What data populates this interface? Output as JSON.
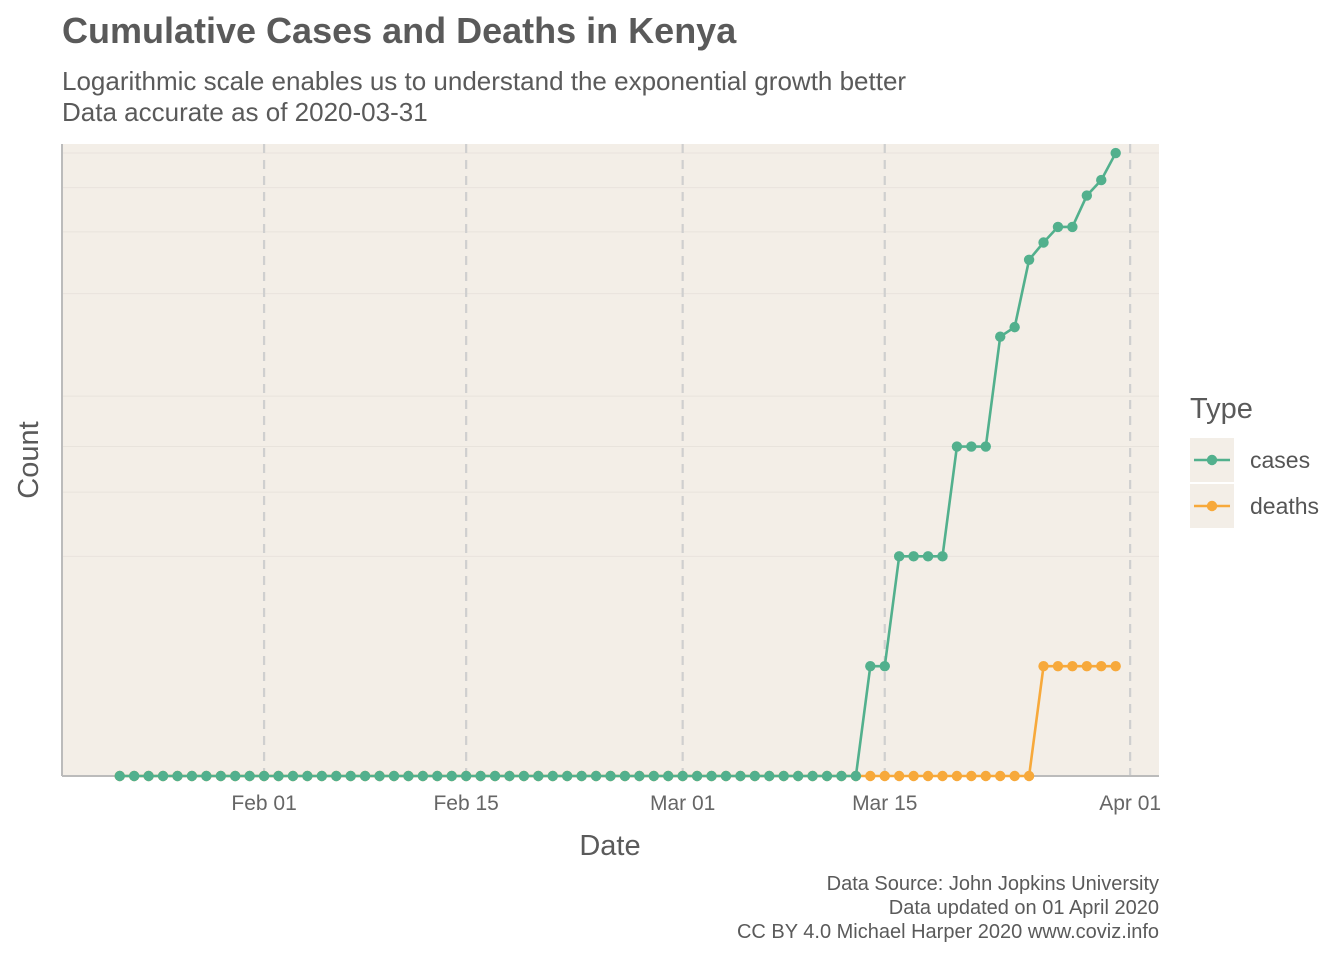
{
  "chart_data": {
    "type": "line",
    "title": "Cumulative Cases and Deaths in Kenya",
    "subtitle_lines": [
      "Logarithmic scale enables us to understand the exponential growth better",
      "Data accurate as of 2020-03-31"
    ],
    "xlabel": "Date",
    "ylabel": "Count",
    "y_scale": "log1p",
    "y_ticks_labeled": false,
    "x_ticks": [
      "2020-02-01",
      "2020-02-15",
      "2020-03-01",
      "2020-03-15",
      "2020-04-01"
    ],
    "x_tick_labels": [
      "Feb 01",
      "Feb 15",
      "Mar 01",
      "Mar 15",
      "Apr 01"
    ],
    "x_range": [
      "2020-01-18",
      "2020-04-03"
    ],
    "y_range": [
      0,
      53
    ],
    "grid": {
      "vertical": "dashed",
      "horizontal": "faint"
    },
    "legend": {
      "title": "Type",
      "placement": "right",
      "items": [
        {
          "label": "cases",
          "color": "#52b08d"
        },
        {
          "label": "deaths",
          "color": "#f7a93b"
        }
      ]
    },
    "series": [
      {
        "name": "cases",
        "color": "#52b08d",
        "start_date": "2020-01-22",
        "values": [
          0,
          0,
          0,
          0,
          0,
          0,
          0,
          0,
          0,
          0,
          0,
          0,
          0,
          0,
          0,
          0,
          0,
          0,
          0,
          0,
          0,
          0,
          0,
          0,
          0,
          0,
          0,
          0,
          0,
          0,
          0,
          0,
          0,
          0,
          0,
          0,
          0,
          0,
          0,
          0,
          0,
          0,
          0,
          0,
          0,
          0,
          0,
          0,
          0,
          0,
          0,
          0,
          1,
          1,
          3,
          3,
          3,
          3,
          7,
          7,
          7,
          15,
          16,
          25,
          28,
          31,
          31,
          38,
          42,
          50
        ]
      },
      {
        "name": "deaths",
        "color": "#f7a93b",
        "start_date": "2020-01-22",
        "values": [
          0,
          0,
          0,
          0,
          0,
          0,
          0,
          0,
          0,
          0,
          0,
          0,
          0,
          0,
          0,
          0,
          0,
          0,
          0,
          0,
          0,
          0,
          0,
          0,
          0,
          0,
          0,
          0,
          0,
          0,
          0,
          0,
          0,
          0,
          0,
          0,
          0,
          0,
          0,
          0,
          0,
          0,
          0,
          0,
          0,
          0,
          0,
          0,
          0,
          0,
          0,
          0,
          0,
          0,
          0,
          0,
          0,
          0,
          0,
          0,
          0,
          0,
          0,
          0,
          1,
          1,
          1,
          1,
          1,
          1
        ]
      }
    ]
  },
  "caption_lines": [
    "Data Source: John Jopkins University",
    "Data updated on 01 April 2020",
    "CC BY 4.0 Michael Harper 2020 www.coviz.info"
  ],
  "colors": {
    "panel_background": "#f3eee7",
    "vertical_grid": "#cfcfcf",
    "horizontal_grid": "#e8e3dc",
    "axis_line": "#bbbbbb"
  }
}
